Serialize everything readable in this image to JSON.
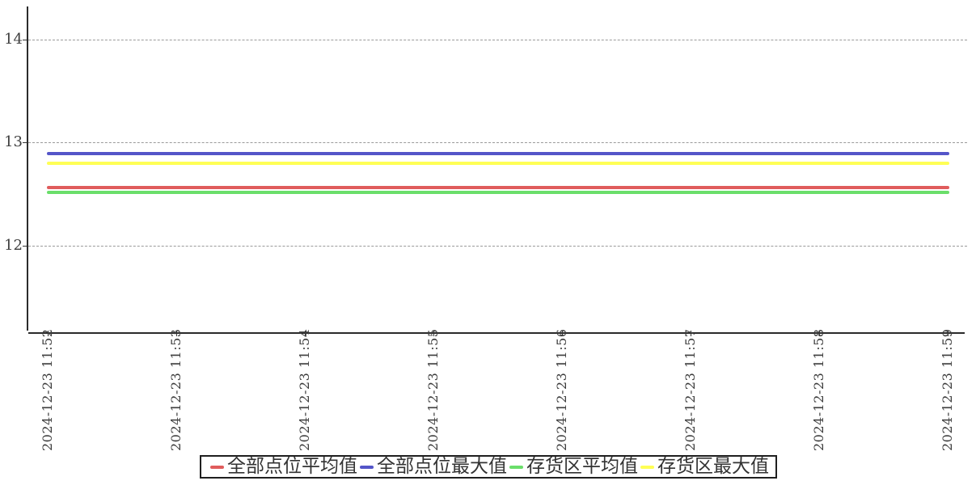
{
  "chart_data": {
    "type": "line",
    "title": "",
    "xlabel": "",
    "ylabel": "",
    "grid": "horizontal-dashed",
    "legend_position": "bottom-center",
    "x": [
      "2024-12-23 11:52",
      "2024-12-23 11:53",
      "2024-12-23 11:54",
      "2024-12-23 11:55",
      "2024-12-23 11:56",
      "2024-12-23 11:57",
      "2024-12-23 11:58",
      "2024-12-23 11:59"
    ],
    "yticks": [
      12,
      13,
      14
    ],
    "ylim": [
      11.16,
      14.32
    ],
    "series": [
      {
        "name": "全部点位平均值",
        "color": "#e05c5c",
        "values": [
          12.56,
          12.56,
          12.56,
          12.56,
          12.56,
          12.56,
          12.56,
          12.56
        ]
      },
      {
        "name": "全部点位最大值",
        "color": "#5455c8",
        "values": [
          12.89,
          12.89,
          12.89,
          12.89,
          12.89,
          12.89,
          12.89,
          12.89
        ]
      },
      {
        "name": "存货区平均值",
        "color": "#6ade6a",
        "values": [
          12.52,
          12.52,
          12.52,
          12.52,
          12.52,
          12.52,
          12.52,
          12.52
        ]
      },
      {
        "name": "存货区最大值",
        "color": "#ffff55",
        "values": [
          12.8,
          12.8,
          12.8,
          12.8,
          12.8,
          12.8,
          12.8,
          12.8
        ]
      }
    ]
  },
  "axis": {
    "color": "#2b2b2b",
    "tick_label_color": "#3d3d3d",
    "gridline_color": "#9a9a9a"
  }
}
